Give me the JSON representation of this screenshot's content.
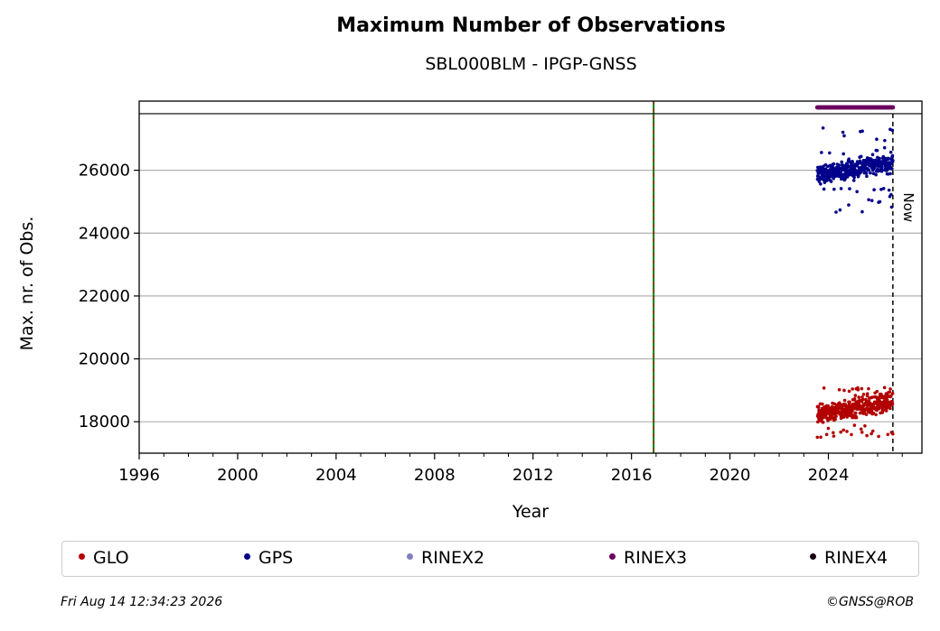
{
  "chart_data": {
    "type": "scatter",
    "title": "Maximum Number of Observations",
    "subtitle": "SBL000BLM - IPGP-GNSS",
    "xlabel": "Year",
    "ylabel": "Max. nr. of Obs.",
    "xlim": [
      1996,
      2027.8
    ],
    "ylim": [
      17000,
      28200
    ],
    "x_ticks": [
      1996,
      2000,
      2004,
      2008,
      2012,
      2016,
      2020,
      2024
    ],
    "y_ticks": [
      18000,
      20000,
      22000,
      24000,
      26000
    ],
    "grid": "horizontal",
    "vertical_markers": [
      {
        "x": 2016.9,
        "style": "green-red-dashed"
      },
      {
        "x": 2026.62,
        "style": "black-dashed",
        "label": "Now"
      }
    ],
    "top_band_y": 27800,
    "series": [
      {
        "name": "GLO",
        "color": "#b20000",
        "x_range": [
          2023.55,
          2026.62
        ],
        "y_typical": [
          17900,
          18900
        ],
        "y_min": 17500,
        "y_max": 19100
      },
      {
        "name": "GPS",
        "color": "#00008b",
        "x_range": [
          2023.55,
          2026.62
        ],
        "y_typical": [
          25500,
          26500
        ],
        "y_min": 24650,
        "y_max": 27350
      },
      {
        "name": "RINEX2",
        "color": "#7f7fbf",
        "x_range": [],
        "y_value": null
      },
      {
        "name": "RINEX3",
        "color": "#6b005f",
        "x_range": [
          2023.55,
          2026.62
        ],
        "y_value": 28000
      },
      {
        "name": "RINEX4",
        "color": "#1a0010",
        "x_range": [],
        "y_value": null
      }
    ]
  },
  "footer": {
    "timestamp": "Fri Aug 14 12:34:23 2026",
    "copyright": "©GNSS@ROB"
  }
}
